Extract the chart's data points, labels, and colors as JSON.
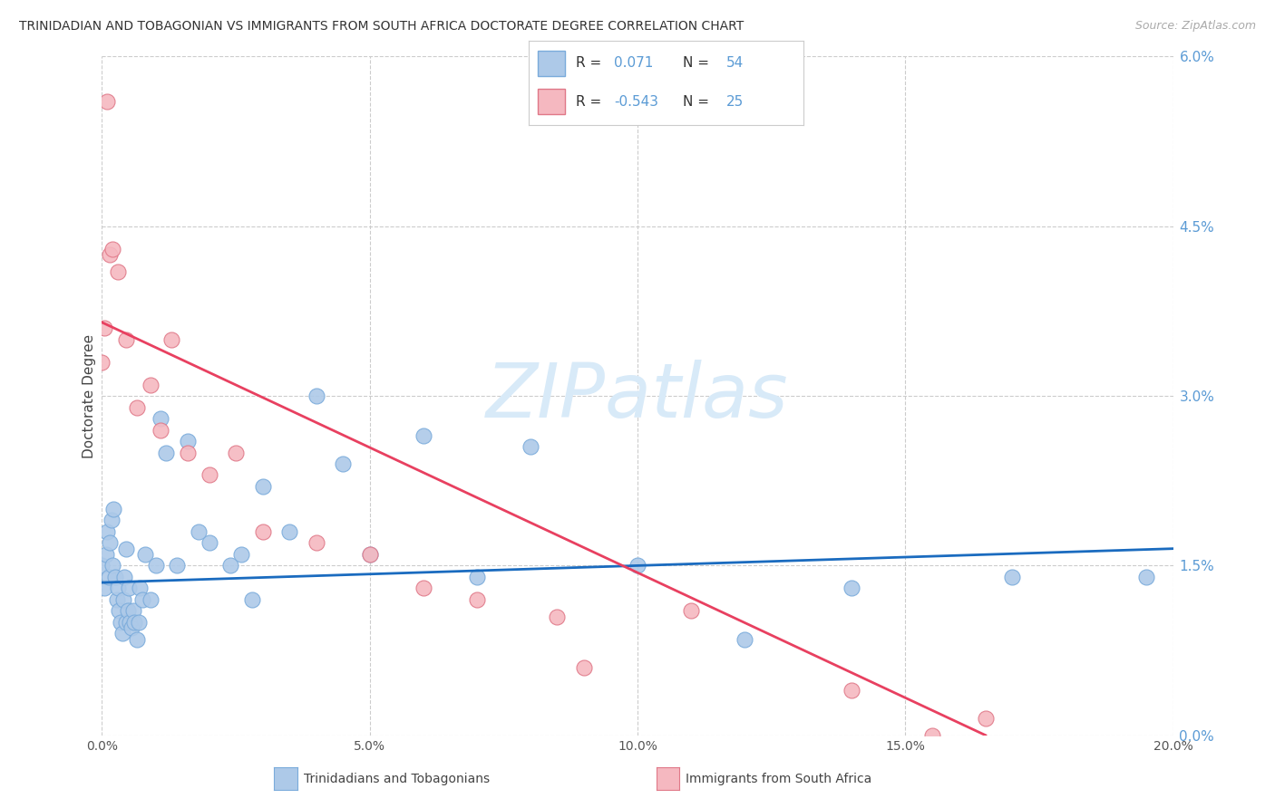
{
  "title": "TRINIDADIAN AND TOBAGONIAN VS IMMIGRANTS FROM SOUTH AFRICA DOCTORATE DEGREE CORRELATION CHART",
  "source": "Source: ZipAtlas.com",
  "ylabel": "Doctorate Degree",
  "ytick_vals": [
    0.0,
    1.5,
    3.0,
    4.5,
    6.0
  ],
  "xlim": [
    0.0,
    20.0
  ],
  "ylim": [
    0.0,
    6.0
  ],
  "blue_color": "#adc9e8",
  "blue_edge_color": "#7aabdb",
  "pink_color": "#f5b8c0",
  "pink_edge_color": "#e07888",
  "blue_line_color": "#1a6bbf",
  "pink_line_color": "#e84060",
  "right_axis_color": "#5b9bd5",
  "grid_color": "#cccccc",
  "title_color": "#333333",
  "source_color": "#aaaaaa",
  "watermark_color": "#d8eaf8",
  "blue_points_x": [
    0.0,
    0.05,
    0.08,
    0.1,
    0.12,
    0.15,
    0.18,
    0.2,
    0.22,
    0.25,
    0.28,
    0.3,
    0.32,
    0.35,
    0.38,
    0.4,
    0.42,
    0.45,
    0.48,
    0.5,
    0.52,
    0.55,
    0.58,
    0.6,
    0.65,
    0.68,
    0.7,
    0.75,
    0.8,
    0.9,
    1.0,
    1.1,
    1.2,
    1.4,
    1.6,
    2.0,
    2.4,
    2.6,
    3.0,
    3.5,
    4.0,
    4.5,
    5.0,
    6.0,
    7.0,
    8.0,
    10.0,
    12.0,
    14.0,
    17.0,
    19.5,
    2.8,
    1.8,
    0.45
  ],
  "blue_points_y": [
    1.5,
    1.3,
    1.6,
    1.8,
    1.4,
    1.7,
    1.9,
    1.5,
    2.0,
    1.4,
    1.2,
    1.3,
    1.1,
    1.0,
    0.9,
    1.2,
    1.4,
    1.0,
    1.1,
    1.3,
    1.0,
    0.95,
    1.1,
    1.0,
    0.85,
    1.0,
    1.3,
    1.2,
    1.6,
    1.2,
    1.5,
    2.8,
    2.5,
    1.5,
    2.6,
    1.7,
    1.5,
    1.6,
    2.2,
    1.8,
    3.0,
    2.4,
    1.6,
    2.65,
    1.4,
    2.55,
    1.5,
    0.85,
    1.3,
    1.4,
    1.4,
    1.2,
    1.8,
    1.65
  ],
  "pink_points_x": [
    0.0,
    0.05,
    0.1,
    0.15,
    0.2,
    0.3,
    0.45,
    0.65,
    0.9,
    1.1,
    1.3,
    1.6,
    2.0,
    2.5,
    3.0,
    4.0,
    5.0,
    6.0,
    7.0,
    8.5,
    9.0,
    11.0,
    14.0,
    15.5,
    16.5
  ],
  "pink_points_y": [
    3.3,
    3.6,
    5.6,
    4.25,
    4.3,
    4.1,
    3.5,
    2.9,
    3.1,
    2.7,
    3.5,
    2.5,
    2.3,
    2.5,
    1.8,
    1.7,
    1.6,
    1.3,
    1.2,
    1.05,
    0.6,
    1.1,
    0.4,
    0.0,
    0.15
  ],
  "blue_line_x0": 0.0,
  "blue_line_x1": 20.0,
  "blue_line_y0": 1.35,
  "blue_line_y1": 1.65,
  "pink_line_x0": 0.0,
  "pink_line_x1": 16.5,
  "pink_line_y0": 3.65,
  "pink_line_y1": 0.0
}
